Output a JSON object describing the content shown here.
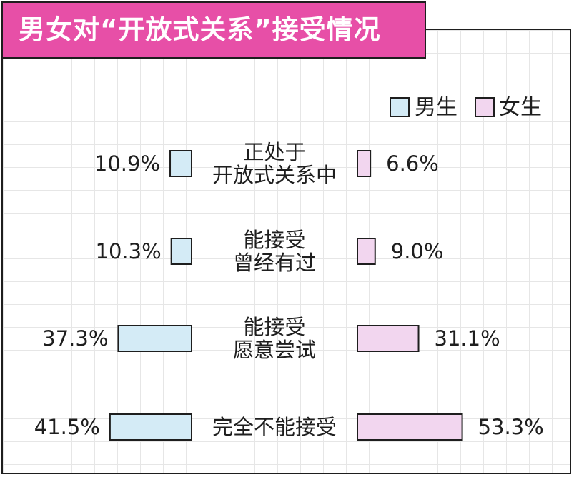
{
  "chart_data": {
    "type": "bar",
    "title": "男女对“开放式关系”接受情况",
    "categories": [
      [
        "正处于",
        "开放式关系中"
      ],
      [
        "能接受",
        "曾经有过"
      ],
      [
        "能接受",
        "愿意尝试"
      ],
      [
        "完全不能接受"
      ]
    ],
    "series": [
      {
        "name": "男生",
        "color": "#d4ebf6",
        "values": [
          10.9,
          10.3,
          37.3,
          41.5
        ],
        "labels": [
          "10.9%",
          "10.3%",
          "37.3%",
          "41.5%"
        ]
      },
      {
        "name": "女生",
        "color": "#f2d6ef",
        "values": [
          6.6,
          9.0,
          31.1,
          53.3
        ],
        "labels": [
          "6.6%",
          "9.0%",
          "31.1%",
          "53.3%"
        ]
      }
    ],
    "unit": "%",
    "legend": "top-right",
    "layout": "diverging-horizontal"
  }
}
